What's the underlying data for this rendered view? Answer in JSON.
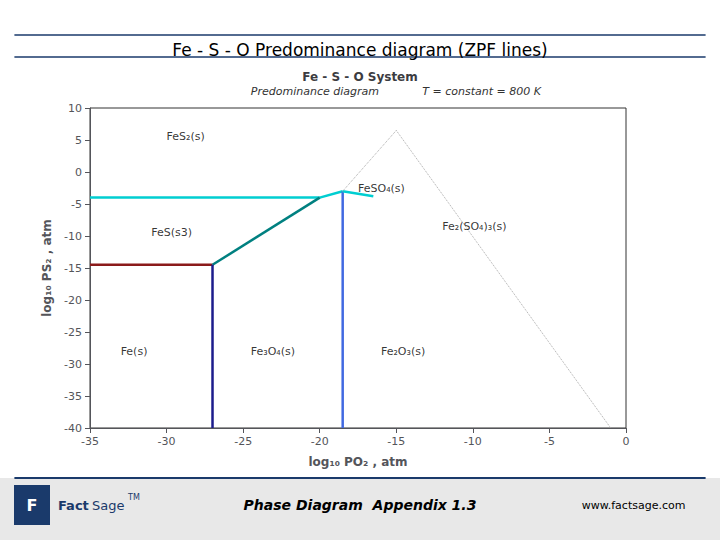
{
  "chart_data": {
    "type": "line",
    "title": "Fe - S - O Predominance diagram (ZPF lines)",
    "subtitle": "Fe - S - O System",
    "x_label": "log₁₀ PO₂ , atm",
    "y_label": "log₁₀ PS₂ , atm",
    "xlim": [
      -35,
      0
    ],
    "ylim": [
      -40,
      10
    ],
    "xticks": [
      -35,
      -30,
      -25,
      -20,
      -15,
      -10,
      -5,
      0
    ],
    "yticks": [
      -40,
      -35,
      -30,
      -25,
      -20,
      -15,
      -10,
      -5,
      0,
      5,
      10
    ],
    "grid": false,
    "series": [
      {
        "x": [
          -35,
          -20
        ],
        "values": [
          -4,
          -4
        ],
        "color": "#00CED1",
        "line_style": "solid"
      },
      {
        "x": [
          -20,
          -18.5
        ],
        "values": [
          -4,
          -3
        ],
        "color": "#00CED1",
        "line_style": "solid"
      },
      {
        "x": [
          -35,
          -27
        ],
        "values": [
          -14.5,
          -14.5
        ],
        "color": "#8B1A1A",
        "line_style": "solid"
      },
      {
        "x": [
          -27,
          -20
        ],
        "values": [
          -14.5,
          -4
        ],
        "color": "#008080",
        "line_style": "solid"
      },
      {
        "x": [
          -27,
          -27
        ],
        "values": [
          -40,
          -14.5
        ],
        "color": "#1C1C8C",
        "line_style": "solid"
      },
      {
        "x": [
          -18.5,
          -18.5
        ],
        "values": [
          -40,
          -3
        ],
        "color": "#4169E1",
        "line_style": "solid"
      },
      {
        "x": [
          -18.5,
          -16.5
        ],
        "values": [
          -3,
          -3.8
        ],
        "color": "#00CED1",
        "line_style": "solid"
      },
      {
        "x": [
          -18.5,
          -15.0
        ],
        "values": [
          -3,
          6.5
        ],
        "color": "#aaaaaa",
        "line_style": "dotted"
      },
      {
        "x": [
          -15.0,
          -1.0
        ],
        "values": [
          6.5,
          -40
        ],
        "color": "#aaaaaa",
        "line_style": "dotted"
      }
    ],
    "annotations": [
      {
        "text": "Predominance diagram"
      },
      {
        "text": "T = constant = 800 K"
      },
      {
        "text": "FeS₂(s)",
        "x": -30,
        "y": 5.5
      },
      {
        "text": "FeSO₄(s)",
        "x": -17.5,
        "y": -2.5
      },
      {
        "text": "FeS(s3)",
        "x": -31,
        "y": -9.5
      },
      {
        "text": "Fe₂(SO₄)₃(s)",
        "x": -12,
        "y": -8.5
      },
      {
        "text": "Fe(s)",
        "x": -33,
        "y": -28
      },
      {
        "text": "Fe₃O₄(s)",
        "x": -24.5,
        "y": -28
      },
      {
        "text": "Fe₂O₃(s)",
        "x": -16,
        "y": -28
      }
    ],
    "footer": {
      "logo": [
        "F",
        "Fact",
        "Sage",
        "TM"
      ],
      "text": "Phase Diagram  Appendix 1.3",
      "url": "www.factsage.com"
    }
  }
}
